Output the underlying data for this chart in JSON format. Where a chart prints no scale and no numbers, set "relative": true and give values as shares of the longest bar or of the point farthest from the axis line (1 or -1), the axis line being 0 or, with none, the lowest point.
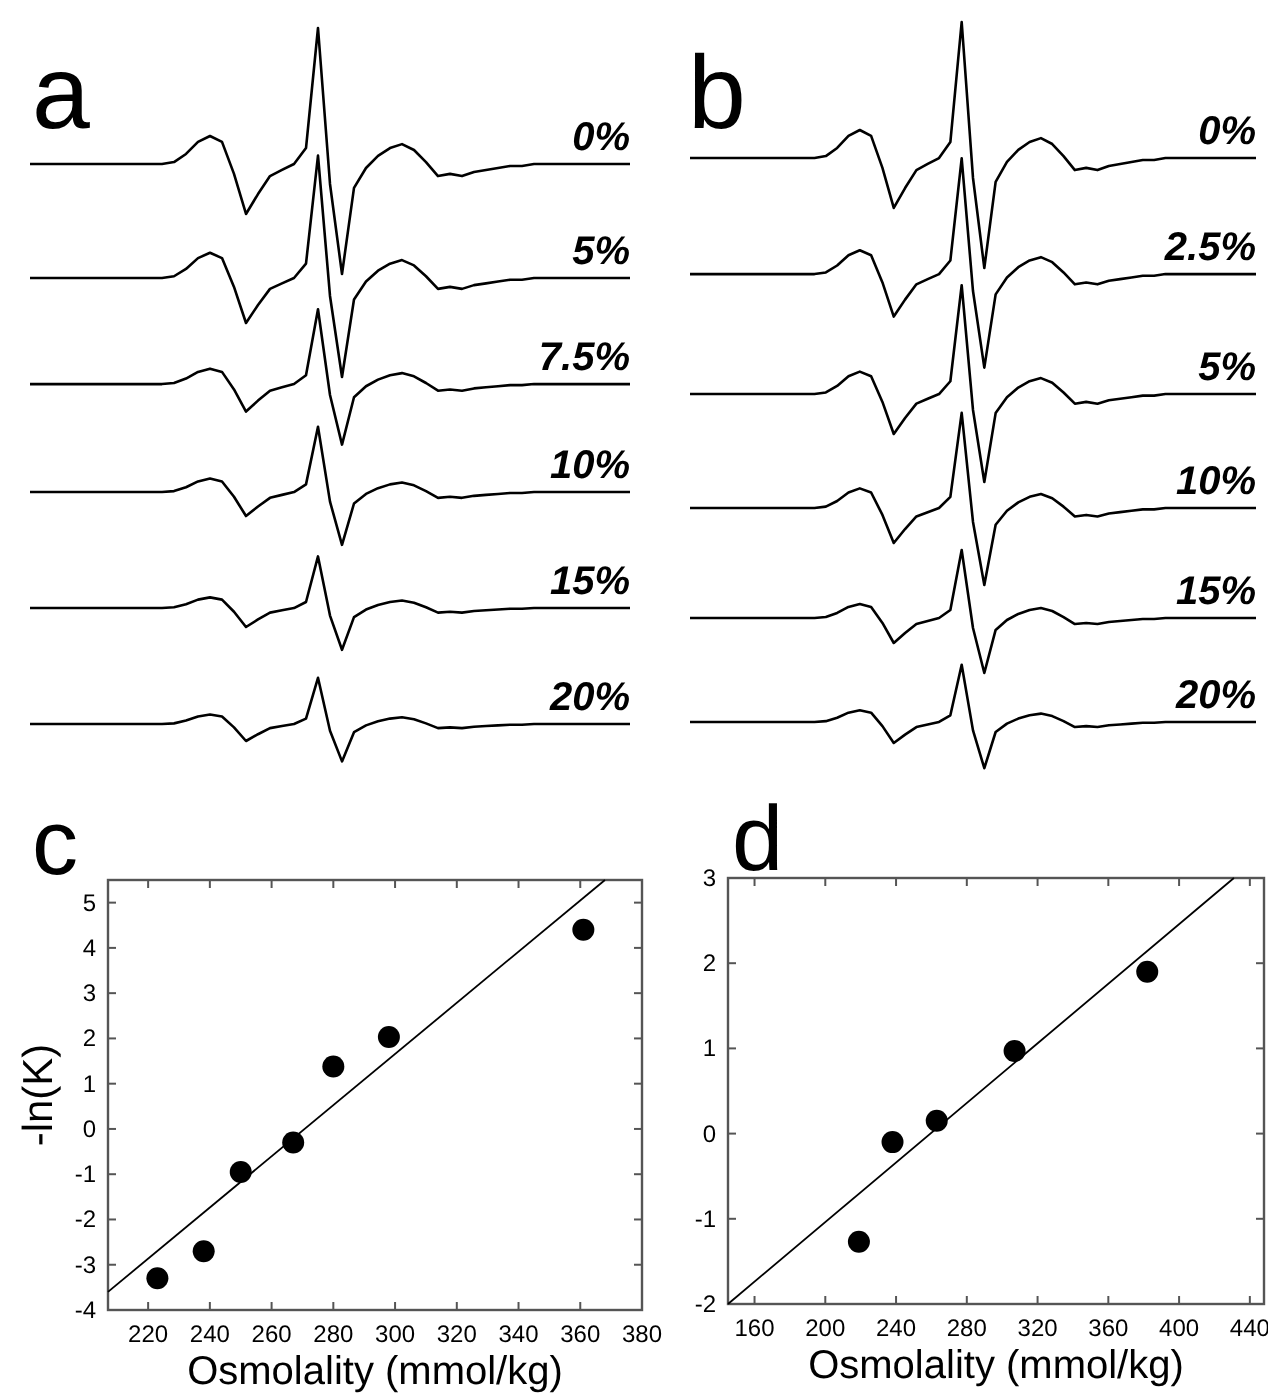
{
  "chart_data": [
    {
      "type": "line",
      "title": "a",
      "relative": true,
      "categories": [
        null,
        null,
        null,
        null,
        null,
        null,
        null,
        null,
        null,
        null,
        null,
        null,
        null,
        null,
        null,
        null,
        null,
        null,
        null,
        null,
        null,
        null,
        null,
        null,
        null,
        null,
        null,
        null,
        null,
        null,
        null,
        null,
        null,
        null,
        null,
        null,
        null,
        null,
        null,
        null,
        null,
        null,
        null,
        null,
        null,
        null,
        null,
        null,
        null,
        null,
        null
      ],
      "series": [
        {
          "name": "0%",
          "color": "#000000",
          "values": [
            0.447,
            0.447,
            0.447,
            0.447,
            0.447,
            0.447,
            0.447,
            0.447,
            0.447,
            0.447,
            0.447,
            0.447,
            0.455,
            0.488,
            0.537,
            0.561,
            0.537,
            0.407,
            0.244,
            0.325,
            0.398,
            0.423,
            0.447,
            0.512,
            1,
            0.366,
            0,
            0.35,
            0.431,
            0.48,
            0.512,
            0.528,
            0.504,
            0.455,
            0.398,
            0.407,
            0.398,
            0.415,
            0.423,
            0.431,
            0.439,
            0.439,
            0.447,
            0.447,
            0.447,
            0.447,
            0.447,
            0.447,
            0.447,
            0.447,
            0.447
          ]
        }
      ]
    },
    {
      "type": "line",
      "relative": true,
      "categories": [
        null,
        null,
        null,
        null,
        null,
        null,
        null,
        null,
        null,
        null,
        null,
        null,
        null,
        null,
        null,
        null,
        null,
        null,
        null,
        null,
        null,
        null,
        null,
        null,
        null,
        null,
        null,
        null,
        null,
        null,
        null,
        null,
        null,
        null,
        null,
        null,
        null,
        null,
        null,
        null,
        null,
        null,
        null,
        null,
        null,
        null,
        null,
        null,
        null,
        null,
        null
      ],
      "series": [
        {
          "name": "5%",
          "color": "#000000",
          "values": [
            0.447,
            0.447,
            0.447,
            0.447,
            0.447,
            0.447,
            0.447,
            0.447,
            0.447,
            0.447,
            0.447,
            0.447,
            0.455,
            0.488,
            0.537,
            0.561,
            0.537,
            0.407,
            0.244,
            0.325,
            0.398,
            0.423,
            0.447,
            0.512,
            1,
            0.366,
            0,
            0.35,
            0.431,
            0.48,
            0.512,
            0.528,
            0.504,
            0.455,
            0.398,
            0.407,
            0.398,
            0.415,
            0.423,
            0.431,
            0.439,
            0.439,
            0.447,
            0.447,
            0.447,
            0.447,
            0.447,
            0.447,
            0.447,
            0.447,
            0.447
          ]
        }
      ]
    },
    {
      "type": "line",
      "relative": true,
      "categories": [
        null,
        null,
        null,
        null,
        null,
        null,
        null,
        null,
        null,
        null,
        null,
        null,
        null,
        null,
        null,
        null,
        null,
        null,
        null,
        null,
        null,
        null,
        null,
        null,
        null,
        null,
        null,
        null,
        null,
        null,
        null,
        null,
        null,
        null,
        null,
        null,
        null,
        null,
        null,
        null,
        null,
        null,
        null,
        null,
        null,
        null,
        null,
        null,
        null,
        null,
        null
      ],
      "series": [
        {
          "name": "7.5%",
          "color": "#000000",
          "values": [
            0.447,
            0.447,
            0.447,
            0.447,
            0.447,
            0.447,
            0.447,
            0.447,
            0.447,
            0.447,
            0.447,
            0.447,
            0.455,
            0.488,
            0.537,
            0.561,
            0.537,
            0.407,
            0.244,
            0.325,
            0.398,
            0.423,
            0.447,
            0.512,
            1,
            0.366,
            0,
            0.35,
            0.431,
            0.48,
            0.512,
            0.528,
            0.504,
            0.455,
            0.398,
            0.407,
            0.398,
            0.415,
            0.423,
            0.431,
            0.439,
            0.439,
            0.447,
            0.447,
            0.447,
            0.447,
            0.447,
            0.447,
            0.447,
            0.447,
            0.447
          ]
        }
      ]
    },
    {
      "type": "line",
      "relative": true,
      "categories": [
        null,
        null,
        null,
        null,
        null,
        null,
        null,
        null,
        null,
        null,
        null,
        null,
        null,
        null,
        null,
        null,
        null,
        null,
        null,
        null,
        null,
        null,
        null,
        null,
        null,
        null,
        null,
        null,
        null,
        null,
        null,
        null,
        null,
        null,
        null,
        null,
        null,
        null,
        null,
        null,
        null,
        null,
        null,
        null,
        null,
        null,
        null,
        null,
        null,
        null,
        null
      ],
      "series": [
        {
          "name": "10%",
          "color": "#000000",
          "values": [
            0.447,
            0.447,
            0.447,
            0.447,
            0.447,
            0.447,
            0.447,
            0.447,
            0.447,
            0.447,
            0.447,
            0.447,
            0.455,
            0.488,
            0.537,
            0.561,
            0.537,
            0.407,
            0.244,
            0.325,
            0.398,
            0.423,
            0.447,
            0.512,
            1,
            0.366,
            0,
            0.35,
            0.431,
            0.48,
            0.512,
            0.528,
            0.504,
            0.455,
            0.398,
            0.407,
            0.398,
            0.415,
            0.423,
            0.431,
            0.439,
            0.439,
            0.447,
            0.447,
            0.447,
            0.447,
            0.447,
            0.447,
            0.447,
            0.447,
            0.447
          ]
        }
      ]
    },
    {
      "type": "line",
      "relative": true,
      "categories": [
        null,
        null,
        null,
        null,
        null,
        null,
        null,
        null,
        null,
        null,
        null,
        null,
        null,
        null,
        null,
        null,
        null,
        null,
        null,
        null,
        null,
        null,
        null,
        null,
        null,
        null,
        null,
        null,
        null,
        null,
        null,
        null,
        null,
        null,
        null,
        null,
        null,
        null,
        null,
        null,
        null,
        null,
        null,
        null,
        null,
        null,
        null,
        null,
        null,
        null,
        null
      ],
      "series": [
        {
          "name": "15%",
          "color": "#000000",
          "values": [
            0.447,
            0.447,
            0.447,
            0.447,
            0.447,
            0.447,
            0.447,
            0.447,
            0.447,
            0.447,
            0.447,
            0.447,
            0.455,
            0.488,
            0.537,
            0.561,
            0.537,
            0.407,
            0.244,
            0.325,
            0.398,
            0.423,
            0.447,
            0.512,
            1,
            0.366,
            0,
            0.35,
            0.431,
            0.48,
            0.512,
            0.528,
            0.504,
            0.455,
            0.398,
            0.407,
            0.398,
            0.415,
            0.423,
            0.431,
            0.439,
            0.439,
            0.447,
            0.447,
            0.447,
            0.447,
            0.447,
            0.447,
            0.447,
            0.447,
            0.447
          ]
        }
      ]
    },
    {
      "type": "line",
      "relative": true,
      "categories": [
        null,
        null,
        null,
        null,
        null,
        null,
        null,
        null,
        null,
        null,
        null,
        null,
        null,
        null,
        null,
        null,
        null,
        null,
        null,
        null,
        null,
        null,
        null,
        null,
        null,
        null,
        null,
        null,
        null,
        null,
        null,
        null,
        null,
        null,
        null,
        null,
        null,
        null,
        null,
        null,
        null,
        null,
        null,
        null,
        null,
        null,
        null,
        null,
        null,
        null,
        null
      ],
      "series": [
        {
          "name": "20%",
          "color": "#000000",
          "values": [
            0.447,
            0.447,
            0.447,
            0.447,
            0.447,
            0.447,
            0.447,
            0.447,
            0.447,
            0.447,
            0.447,
            0.447,
            0.455,
            0.488,
            0.537,
            0.561,
            0.537,
            0.407,
            0.244,
            0.325,
            0.398,
            0.423,
            0.447,
            0.512,
            1,
            0.366,
            0,
            0.35,
            0.431,
            0.48,
            0.512,
            0.528,
            0.504,
            0.455,
            0.398,
            0.407,
            0.398,
            0.415,
            0.423,
            0.431,
            0.439,
            0.439,
            0.447,
            0.447,
            0.447,
            0.447,
            0.447,
            0.447,
            0.447,
            0.447,
            0.447
          ]
        }
      ]
    },
    {
      "type": "line",
      "title": "b",
      "relative": true,
      "categories": [
        null,
        null,
        null,
        null,
        null,
        null,
        null,
        null,
        null,
        null,
        null,
        null,
        null,
        null,
        null,
        null,
        null,
        null,
        null,
        null,
        null,
        null,
        null,
        null,
        null,
        null,
        null,
        null,
        null,
        null,
        null,
        null,
        null,
        null,
        null,
        null,
        null,
        null,
        null,
        null,
        null,
        null,
        null,
        null,
        null,
        null,
        null,
        null,
        null,
        null,
        null
      ],
      "series": [
        {
          "name": "0%",
          "color": "#000000",
          "values": [
            0.447,
            0.447,
            0.447,
            0.447,
            0.447,
            0.447,
            0.447,
            0.447,
            0.447,
            0.447,
            0.447,
            0.447,
            0.455,
            0.488,
            0.537,
            0.561,
            0.537,
            0.407,
            0.244,
            0.325,
            0.398,
            0.423,
            0.447,
            0.512,
            1,
            0.366,
            0,
            0.35,
            0.431,
            0.48,
            0.512,
            0.528,
            0.504,
            0.455,
            0.398,
            0.407,
            0.398,
            0.415,
            0.423,
            0.431,
            0.439,
            0.439,
            0.447,
            0.447,
            0.447,
            0.447,
            0.447,
            0.447,
            0.447,
            0.447,
            0.447
          ]
        }
      ]
    },
    {
      "type": "line",
      "relative": true,
      "categories": [
        null,
        null,
        null,
        null,
        null,
        null,
        null,
        null,
        null,
        null,
        null,
        null,
        null,
        null,
        null,
        null,
        null,
        null,
        null,
        null,
        null,
        null,
        null,
        null,
        null,
        null,
        null,
        null,
        null,
        null,
        null,
        null,
        null,
        null,
        null,
        null,
        null,
        null,
        null,
        null,
        null,
        null,
        null,
        null,
        null,
        null,
        null,
        null,
        null,
        null,
        null
      ],
      "series": [
        {
          "name": "2.5%",
          "color": "#000000",
          "values": [
            0.447,
            0.447,
            0.447,
            0.447,
            0.447,
            0.447,
            0.447,
            0.447,
            0.447,
            0.447,
            0.447,
            0.447,
            0.455,
            0.488,
            0.537,
            0.561,
            0.537,
            0.407,
            0.244,
            0.325,
            0.398,
            0.423,
            0.447,
            0.512,
            1,
            0.366,
            0,
            0.35,
            0.431,
            0.48,
            0.512,
            0.528,
            0.504,
            0.455,
            0.398,
            0.407,
            0.398,
            0.415,
            0.423,
            0.431,
            0.439,
            0.439,
            0.447,
            0.447,
            0.447,
            0.447,
            0.447,
            0.447,
            0.447,
            0.447,
            0.447
          ]
        }
      ]
    },
    {
      "type": "line",
      "relative": true,
      "categories": [
        null,
        null,
        null,
        null,
        null,
        null,
        null,
        null,
        null,
        null,
        null,
        null,
        null,
        null,
        null,
        null,
        null,
        null,
        null,
        null,
        null,
        null,
        null,
        null,
        null,
        null,
        null,
        null,
        null,
        null,
        null,
        null,
        null,
        null,
        null,
        null,
        null,
        null,
        null,
        null,
        null,
        null,
        null,
        null,
        null,
        null,
        null,
        null,
        null,
        null,
        null
      ],
      "series": [
        {
          "name": "5%",
          "color": "#000000",
          "values": [
            0.447,
            0.447,
            0.447,
            0.447,
            0.447,
            0.447,
            0.447,
            0.447,
            0.447,
            0.447,
            0.447,
            0.447,
            0.455,
            0.488,
            0.537,
            0.561,
            0.537,
            0.407,
            0.244,
            0.325,
            0.398,
            0.423,
            0.447,
            0.512,
            1,
            0.366,
            0,
            0.35,
            0.431,
            0.48,
            0.512,
            0.528,
            0.504,
            0.455,
            0.398,
            0.407,
            0.398,
            0.415,
            0.423,
            0.431,
            0.439,
            0.439,
            0.447,
            0.447,
            0.447,
            0.447,
            0.447,
            0.447,
            0.447,
            0.447,
            0.447
          ]
        }
      ]
    },
    {
      "type": "line",
      "relative": true,
      "categories": [
        null,
        null,
        null,
        null,
        null,
        null,
        null,
        null,
        null,
        null,
        null,
        null,
        null,
        null,
        null,
        null,
        null,
        null,
        null,
        null,
        null,
        null,
        null,
        null,
        null,
        null,
        null,
        null,
        null,
        null,
        null,
        null,
        null,
        null,
        null,
        null,
        null,
        null,
        null,
        null,
        null,
        null,
        null,
        null,
        null,
        null,
        null,
        null,
        null,
        null,
        null
      ],
      "series": [
        {
          "name": "10%",
          "color": "#000000",
          "values": [
            0.447,
            0.447,
            0.447,
            0.447,
            0.447,
            0.447,
            0.447,
            0.447,
            0.447,
            0.447,
            0.447,
            0.447,
            0.455,
            0.488,
            0.537,
            0.561,
            0.537,
            0.407,
            0.244,
            0.325,
            0.398,
            0.423,
            0.447,
            0.512,
            1,
            0.366,
            0,
            0.35,
            0.431,
            0.48,
            0.512,
            0.528,
            0.504,
            0.455,
            0.398,
            0.407,
            0.398,
            0.415,
            0.423,
            0.431,
            0.439,
            0.439,
            0.447,
            0.447,
            0.447,
            0.447,
            0.447,
            0.447,
            0.447,
            0.447,
            0.447
          ]
        }
      ]
    },
    {
      "type": "line",
      "relative": true,
      "categories": [
        null,
        null,
        null,
        null,
        null,
        null,
        null,
        null,
        null,
        null,
        null,
        null,
        null,
        null,
        null,
        null,
        null,
        null,
        null,
        null,
        null,
        null,
        null,
        null,
        null,
        null,
        null,
        null,
        null,
        null,
        null,
        null,
        null,
        null,
        null,
        null,
        null,
        null,
        null,
        null,
        null,
        null,
        null,
        null,
        null,
        null,
        null,
        null,
        null,
        null,
        null
      ],
      "series": [
        {
          "name": "15%",
          "color": "#000000",
          "values": [
            0.447,
            0.447,
            0.447,
            0.447,
            0.447,
            0.447,
            0.447,
            0.447,
            0.447,
            0.447,
            0.447,
            0.447,
            0.455,
            0.488,
            0.537,
            0.561,
            0.537,
            0.407,
            0.244,
            0.325,
            0.398,
            0.423,
            0.447,
            0.512,
            1,
            0.366,
            0,
            0.35,
            0.431,
            0.48,
            0.512,
            0.528,
            0.504,
            0.455,
            0.398,
            0.407,
            0.398,
            0.415,
            0.423,
            0.431,
            0.439,
            0.439,
            0.447,
            0.447,
            0.447,
            0.447,
            0.447,
            0.447,
            0.447,
            0.447,
            0.447
          ]
        }
      ]
    },
    {
      "type": "line",
      "relative": true,
      "categories": [
        null,
        null,
        null,
        null,
        null,
        null,
        null,
        null,
        null,
        null,
        null,
        null,
        null,
        null,
        null,
        null,
        null,
        null,
        null,
        null,
        null,
        null,
        null,
        null,
        null,
        null,
        null,
        null,
        null,
        null,
        null,
        null,
        null,
        null,
        null,
        null,
        null,
        null,
        null,
        null,
        null,
        null,
        null,
        null,
        null,
        null,
        null,
        null,
        null,
        null,
        null
      ],
      "series": [
        {
          "name": "20%",
          "color": "#000000",
          "values": [
            0.447,
            0.447,
            0.447,
            0.447,
            0.447,
            0.447,
            0.447,
            0.447,
            0.447,
            0.447,
            0.447,
            0.447,
            0.455,
            0.488,
            0.537,
            0.561,
            0.537,
            0.407,
            0.244,
            0.325,
            0.398,
            0.423,
            0.447,
            0.512,
            1,
            0.366,
            0,
            0.35,
            0.431,
            0.48,
            0.512,
            0.528,
            0.504,
            0.455,
            0.398,
            0.407,
            0.398,
            0.415,
            0.423,
            0.431,
            0.439,
            0.439,
            0.447,
            0.447,
            0.447,
            0.447,
            0.447,
            0.447,
            0.447,
            0.447,
            0.447
          ]
        }
      ]
    },
    {
      "type": "scatter",
      "title": "c",
      "xlabel": "Osmolality (mmol/kg)",
      "ylabel": "-ln(K)",
      "xlim": [
        207,
        380
      ],
      "ylim": [
        -4,
        5.5
      ],
      "xticks": [
        220,
        240,
        260,
        280,
        300,
        320,
        340,
        360,
        380
      ],
      "yticks": [
        -4,
        -3,
        -2,
        -1,
        0,
        1,
        2,
        3,
        4,
        5
      ],
      "series": [
        {
          "color": "#000000",
          "marker": "circle",
          "x": [
            223,
            238,
            250,
            267,
            280,
            298,
            361
          ],
          "values": [
            -3.3,
            -2.7,
            -0.95,
            -0.3,
            1.38,
            2.03,
            4.4
          ]
        },
        {
          "type": "line",
          "color": "#000000",
          "x": [
            207,
            368
          ],
          "values": [
            -3.6,
            5.5
          ]
        }
      ]
    },
    {
      "type": "scatter",
      "title": "d",
      "xlabel": "Osmolality (mmol/kg)",
      "xlim": [
        145,
        448
      ],
      "ylim": [
        -2,
        3
      ],
      "xticks": [
        160,
        200,
        240,
        280,
        320,
        360,
        400,
        440
      ],
      "yticks": [
        -2,
        -1,
        0,
        1,
        2,
        3
      ],
      "series": [
        {
          "color": "#000000",
          "marker": "circle",
          "x": [
            219,
            238,
            263,
            307,
            382
          ],
          "values": [
            -1.27,
            -0.1,
            0.15,
            0.97,
            1.9
          ]
        },
        {
          "type": "line",
          "color": "#000000",
          "x": [
            145,
            431
          ],
          "values": [
            -2,
            3
          ]
        }
      ]
    }
  ]
}
